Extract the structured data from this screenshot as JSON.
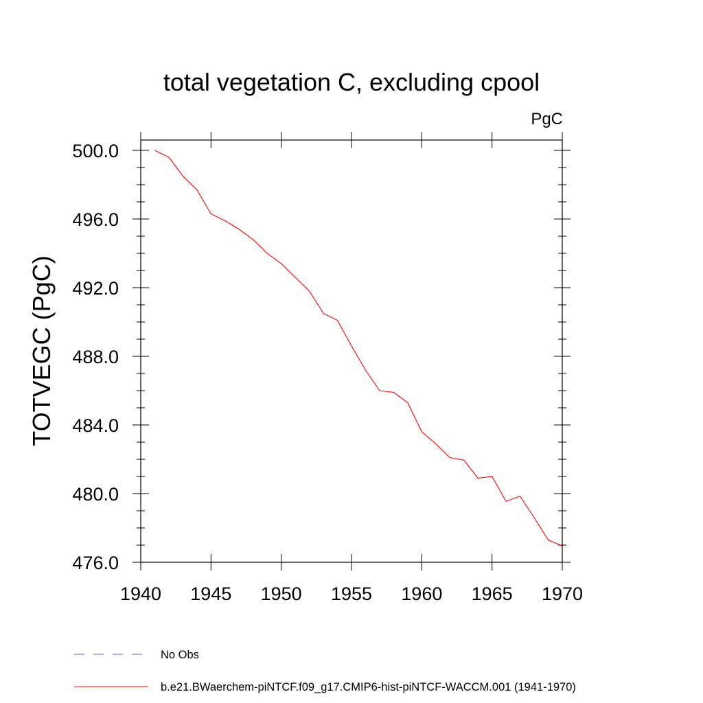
{
  "chart_data": {
    "type": "line",
    "title": "total vegetation C, excluding cpool",
    "units_label": "PgC",
    "ylabel": "TOTVEGC  (PgC)",
    "xlabel": "",
    "xlim": [
      1940,
      1970
    ],
    "ylim": [
      476.0,
      500.6
    ],
    "x_ticks": [
      1940,
      1945,
      1950,
      1955,
      1960,
      1965,
      1970
    ],
    "x_tick_labels": [
      "1940",
      "1945",
      "1950",
      "1955",
      "1960",
      "1965",
      "1970"
    ],
    "y_ticks": [
      476,
      480,
      484,
      488,
      492,
      496,
      500
    ],
    "y_tick_labels": [
      "476.0",
      "480.0",
      "484.0",
      "488.0",
      "492.0",
      "496.0",
      "500.0"
    ],
    "grid": false,
    "legend_placement": "bottom-left, below plot",
    "series": [
      {
        "name": "b.e21.BWaerchem-piNTCF.f09_g17.CMIP6-hist-piNTCF-WACCM.001 (1941-1970)",
        "color": "#ff0000",
        "style": "solid",
        "x": [
          1941,
          1942,
          1943,
          1944,
          1945,
          1946,
          1947,
          1948,
          1949,
          1950,
          1951,
          1952,
          1953,
          1954,
          1955,
          1956,
          1957,
          1958,
          1959,
          1960,
          1961,
          1962,
          1963,
          1964,
          1965,
          1966,
          1967,
          1968,
          1969,
          1970
        ],
        "y": [
          500.0,
          499.6,
          498.5,
          497.7,
          496.3,
          495.9,
          495.4,
          494.8,
          494.0,
          493.4,
          492.6,
          491.8,
          490.5,
          490.1,
          488.6,
          487.2,
          486.0,
          485.9,
          485.3,
          483.6,
          482.9,
          482.1,
          481.95,
          480.9,
          481.0,
          479.55,
          479.85,
          478.6,
          477.3,
          476.95
        ]
      },
      {
        "name": "No Obs",
        "color": "#6a5acd",
        "style": "dashed",
        "x": [],
        "y": []
      }
    ]
  }
}
